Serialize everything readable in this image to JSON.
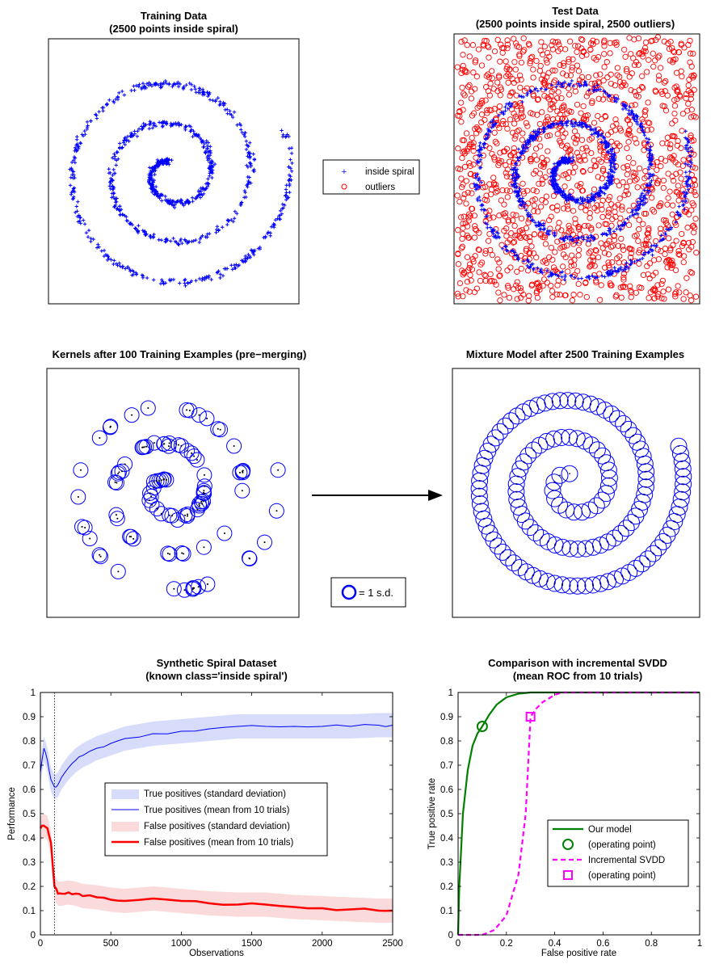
{
  "colors": {
    "inside": "#0000ff",
    "outliers": "#ff0000",
    "tp_band": "#d6dcfa",
    "fp_band": "#fadada",
    "our_model": "#008000",
    "svdd": "#ff00ff"
  },
  "panels": {
    "training": {
      "title_line1": "Training Data",
      "title_line2": "(2500 points inside spiral)"
    },
    "test": {
      "title_line1": "Test Data",
      "title_line2": "(2500 points inside spiral, 2500 outliers)"
    },
    "legend_top": {
      "items": [
        {
          "marker": "plus",
          "label": "inside spiral"
        },
        {
          "marker": "circle",
          "label": "outliers"
        }
      ]
    },
    "kernels": {
      "title": "Kernels after 100 Training Examples (pre−merging)"
    },
    "mixture": {
      "title": "Mixture Model after 2500 Training Examples"
    },
    "sd_legend": {
      "label": "= 1 s.d."
    }
  },
  "chart_data": [
    {
      "type": "line",
      "title_line1": "Synthetic Spiral Dataset",
      "title_line2": "(known class='inside spiral')",
      "xlabel": "Observations",
      "ylabel": "Performance",
      "xlim": [
        0,
        2500
      ],
      "ylim": [
        0,
        1
      ],
      "xticks": [
        "0",
        "500",
        "1000",
        "1500",
        "2000",
        "2500"
      ],
      "yticks": [
        "0",
        "0.1",
        "0.2",
        "0.3",
        "0.4",
        "0.5",
        "0.6",
        "0.7",
        "0.8",
        "0.9",
        "1"
      ],
      "vline_x": 100,
      "legend": [
        "True positives (standard deviation)",
        "True positives (mean from 10 trials)",
        "False positives (standard deviation)",
        "False positives (mean from 10 trials)"
      ],
      "x": [
        0,
        25,
        50,
        75,
        100,
        125,
        150,
        200,
        250,
        300,
        400,
        500,
        600,
        800,
        1000,
        1200,
        1400,
        1600,
        1800,
        2000,
        2200,
        2400,
        2500
      ],
      "series": [
        {
          "values": [
            0.67,
            0.77,
            0.72,
            0.64,
            0.61,
            0.62,
            0.65,
            0.69,
            0.72,
            0.74,
            0.77,
            0.79,
            0.81,
            0.83,
            0.84,
            0.85,
            0.86,
            0.86,
            0.86,
            0.86,
            0.86,
            0.865,
            0.865
          ],
          "band": 0.05
        },
        {
          "values": [
            0.44,
            0.45,
            0.44,
            0.38,
            0.2,
            0.17,
            0.17,
            0.175,
            0.17,
            0.16,
            0.155,
            0.145,
            0.14,
            0.15,
            0.14,
            0.13,
            0.125,
            0.125,
            0.115,
            0.11,
            0.105,
            0.1,
            0.1
          ],
          "band": 0.05
        }
      ]
    },
    {
      "type": "line",
      "title_line1": "Comparison with incremental SVDD",
      "title_line2": "(mean ROC from 10 trials)",
      "xlabel": "False positive rate",
      "ylabel": "True positive rate",
      "xlim": [
        0,
        1
      ],
      "ylim": [
        0,
        1
      ],
      "xticks": [
        "0",
        "0.2",
        "0.4",
        "0.6",
        "0.8",
        "1"
      ],
      "yticks": [
        "0",
        "0.1",
        "0.2",
        "0.3",
        "0.4",
        "0.5",
        "0.6",
        "0.7",
        "0.8",
        "0.9",
        "1"
      ],
      "legend": [
        "Our model",
        "(operating point)",
        "Incremental SVDD",
        "(operating point)"
      ],
      "series": [
        {
          "name": "Our model",
          "x": [
            0,
            0.005,
            0.02,
            0.04,
            0.06,
            0.08,
            0.1,
            0.13,
            0.16,
            0.2,
            0.25,
            0.3,
            0.4,
            1
          ],
          "y": [
            0,
            0.2,
            0.5,
            0.68,
            0.78,
            0.83,
            0.86,
            0.91,
            0.95,
            0.98,
            0.995,
            1,
            1,
            1
          ]
        },
        {
          "name": "Incremental SVDD",
          "x": [
            0,
            0.1,
            0.15,
            0.2,
            0.25,
            0.28,
            0.3,
            0.32,
            0.35,
            0.4,
            0.43,
            1
          ],
          "y": [
            0,
            0,
            0.02,
            0.08,
            0.25,
            0.5,
            0.9,
            0.93,
            0.96,
            0.99,
            1,
            1
          ]
        }
      ],
      "operating_points": [
        {
          "series": "Our model",
          "x": 0.1,
          "y": 0.86
        },
        {
          "series": "Incremental SVDD",
          "x": 0.3,
          "y": 0.9
        }
      ]
    }
  ]
}
